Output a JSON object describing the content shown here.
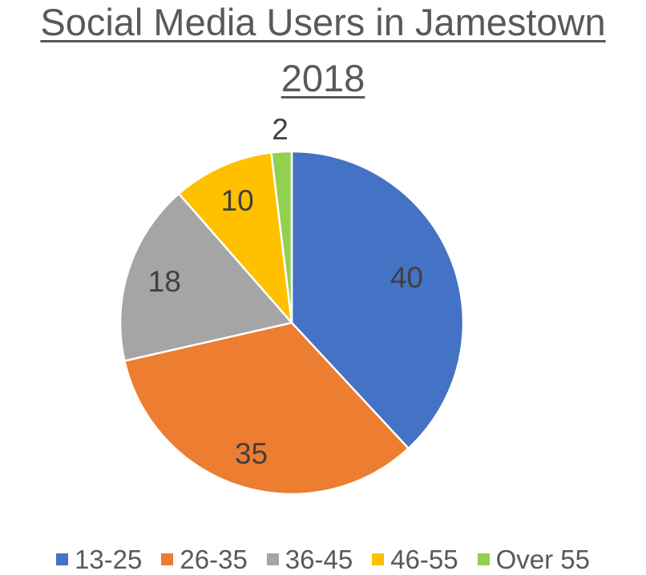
{
  "chart_data": {
    "type": "pie",
    "title": "Social Media Users in Jamestown",
    "subtitle": "2018",
    "categories": [
      "13-25",
      "26-35",
      "36-45",
      "46-55",
      "Over 55"
    ],
    "values": [
      40,
      35,
      18,
      10,
      2
    ],
    "colors": [
      "#4472C4",
      "#ED7D31",
      "#A5A5A5",
      "#FFC000",
      "#92D050"
    ],
    "data_labels": [
      "40",
      "35",
      "18",
      "10",
      "2"
    ],
    "legend_position": "bottom",
    "start_angle": "12 o'clock, clockwise"
  }
}
